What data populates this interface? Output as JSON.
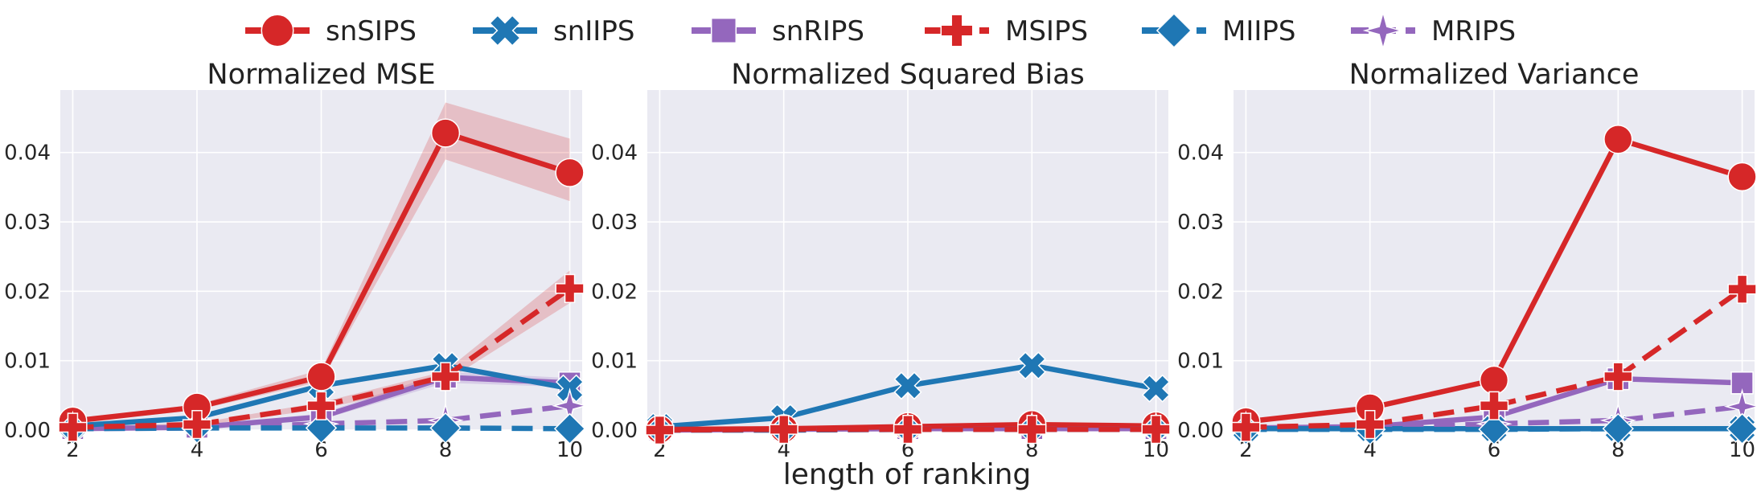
{
  "legend": [
    {
      "name": "snSIPS",
      "color": "#d62728",
      "marker": "circle",
      "dashed": false
    },
    {
      "name": "snIIPS",
      "color": "#1f77b4",
      "marker": "x-filled",
      "dashed": false
    },
    {
      "name": "snRIPS",
      "color": "#9467bd",
      "marker": "square",
      "dashed": false
    },
    {
      "name": "MSIPS",
      "color": "#d62728",
      "marker": "plus",
      "dashed": true
    },
    {
      "name": "MIIPS",
      "color": "#1f77b4",
      "marker": "diamond",
      "dashed": true
    },
    {
      "name": "MRIPS",
      "color": "#9467bd",
      "marker": "star",
      "dashed": true
    }
  ],
  "shared_xlabel": "length of ranking",
  "chart_data": [
    {
      "type": "line",
      "title": "Normalized MSE",
      "xlabel": "",
      "ylabel": "",
      "x": [
        2,
        4,
        6,
        8,
        10
      ],
      "xlim": [
        1.8,
        10.2
      ],
      "ylim": [
        0,
        0.049
      ],
      "xticks": [
        "2",
        "4",
        "6",
        "8",
        "10"
      ],
      "yticks": [
        "0.00",
        "0.01",
        "0.02",
        "0.03",
        "0.04"
      ],
      "grid": true,
      "series": [
        {
          "name": "snSIPS",
          "values": [
            0.0013,
            0.0033,
            0.0077,
            0.0428,
            0.0371
          ],
          "band_low": [
            0.001,
            0.0029,
            0.007,
            0.039,
            0.033
          ],
          "band_high": [
            0.0016,
            0.0037,
            0.0087,
            0.0472,
            0.042
          ]
        },
        {
          "name": "snIIPS",
          "values": [
            0.0006,
            0.0018,
            0.0064,
            0.0093,
            0.006
          ]
        },
        {
          "name": "snRIPS",
          "values": [
            0.0002,
            0.0004,
            0.0019,
            0.0076,
            0.0068
          ],
          "band_low": [
            0.0001,
            0.0003,
            0.0015,
            0.0068,
            0.0062
          ],
          "band_high": [
            0.0003,
            0.0005,
            0.0024,
            0.0084,
            0.0075
          ]
        },
        {
          "name": "MSIPS",
          "values": [
            0.0004,
            0.0008,
            0.0035,
            0.0077,
            0.0204
          ],
          "band_low": [
            0.0003,
            0.0006,
            0.003,
            0.007,
            0.0183
          ],
          "band_high": [
            0.0005,
            0.001,
            0.004,
            0.0085,
            0.023
          ]
        },
        {
          "name": "MIIPS",
          "values": [
            0.0002,
            0.0003,
            0.0003,
            0.0003,
            0.0002
          ]
        },
        {
          "name": "MRIPS",
          "values": [
            0.0002,
            0.0003,
            0.0009,
            0.0014,
            0.0035
          ]
        }
      ]
    },
    {
      "type": "line",
      "title": "Normalized Squared Bias",
      "xlabel": "",
      "ylabel": "",
      "x": [
        2,
        4,
        6,
        8,
        10
      ],
      "xlim": [
        1.8,
        10.2
      ],
      "ylim": [
        0,
        0.049
      ],
      "xticks": [
        "2",
        "4",
        "6",
        "8",
        "10"
      ],
      "yticks": [
        "0.00",
        "0.01",
        "0.02",
        "0.03",
        "0.04"
      ],
      "grid": true,
      "series": [
        {
          "name": "snSIPS",
          "values": [
            0.0001,
            0.0002,
            0.0005,
            0.0008,
            0.0006
          ]
        },
        {
          "name": "snIIPS",
          "values": [
            0.0005,
            0.0018,
            0.0064,
            0.0093,
            0.006
          ]
        },
        {
          "name": "snRIPS",
          "values": [
            0.0,
            0.0001,
            0.0002,
            0.0002,
            0.0002
          ]
        },
        {
          "name": "MSIPS",
          "values": [
            0.0,
            0.0001,
            0.0001,
            0.0001,
            0.0001
          ]
        },
        {
          "name": "MIIPS",
          "values": [
            0.0,
            0.0,
            0.0001,
            0.0001,
            0.0001
          ]
        },
        {
          "name": "MRIPS",
          "values": [
            0.0,
            0.0,
            0.0001,
            0.0001,
            0.0001
          ]
        }
      ]
    },
    {
      "type": "line",
      "title": "Normalized Variance",
      "xlabel": "",
      "ylabel": "",
      "x": [
        2,
        4,
        6,
        8,
        10
      ],
      "xlim": [
        1.8,
        10.2
      ],
      "ylim": [
        0,
        0.049
      ],
      "xticks": [
        "2",
        "4",
        "6",
        "8",
        "10"
      ],
      "yticks": [
        "0.00",
        "0.01",
        "0.02",
        "0.03",
        "0.04"
      ],
      "grid": true,
      "series": [
        {
          "name": "snSIPS",
          "values": [
            0.0012,
            0.0032,
            0.0072,
            0.0419,
            0.0365
          ]
        },
        {
          "name": "snIIPS",
          "values": [
            0.0002,
            0.0002,
            0.0002,
            0.0002,
            0.0002
          ]
        },
        {
          "name": "snRIPS",
          "values": [
            0.0003,
            0.0005,
            0.0019,
            0.0074,
            0.0068
          ]
        },
        {
          "name": "MSIPS",
          "values": [
            0.0004,
            0.0008,
            0.0035,
            0.0077,
            0.0203
          ]
        },
        {
          "name": "MIIPS",
          "values": [
            0.0001,
            0.0001,
            0.0001,
            0.0002,
            0.0002
          ]
        },
        {
          "name": "MRIPS",
          "values": [
            0.0002,
            0.0003,
            0.0009,
            0.0014,
            0.0034
          ]
        }
      ]
    }
  ]
}
